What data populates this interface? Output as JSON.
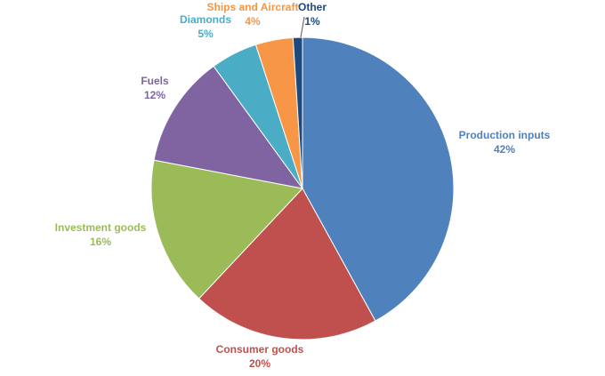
{
  "chart_data": {
    "type": "pie",
    "title": "",
    "slices": [
      {
        "name": "Production inputs",
        "value": 42,
        "label": "42%",
        "color": "#4F81BD"
      },
      {
        "name": "Consumer goods",
        "value": 20,
        "label": "20%",
        "color": "#C0504D"
      },
      {
        "name": "Investment goods",
        "value": 16,
        "label": "16%",
        "color": "#9BBB59"
      },
      {
        "name": "Fuels",
        "value": 12,
        "label": "12%",
        "color": "#8064A2"
      },
      {
        "name": "Diamonds",
        "value": 5,
        "label": "5%",
        "color": "#4BACC6"
      },
      {
        "name": "Ships and Aircraft",
        "value": 4,
        "label": "4%",
        "color": "#F79646"
      },
      {
        "name": "Other",
        "value": 1,
        "label": "1%",
        "color": "#1F497D"
      }
    ]
  }
}
